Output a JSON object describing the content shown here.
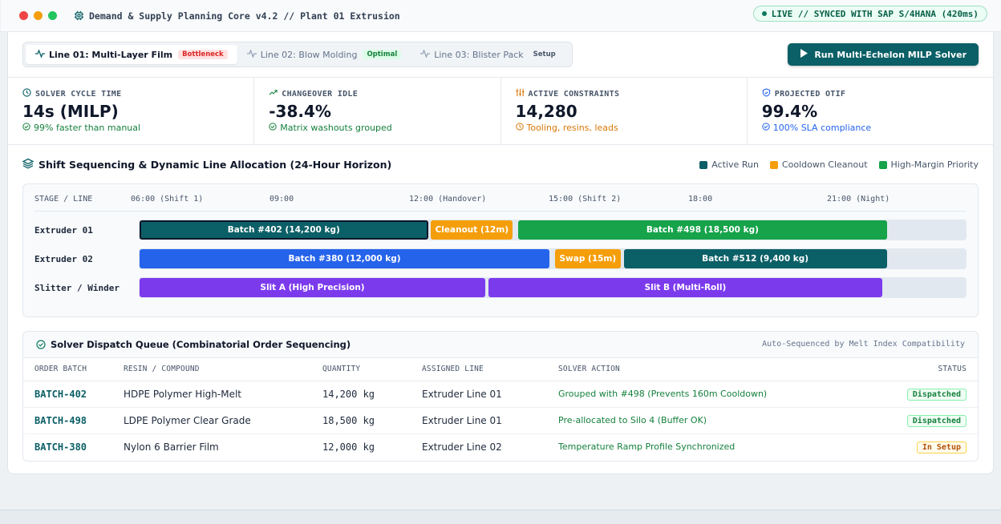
{
  "window": {
    "title": "Demand & Supply Planning Core v4.2 // Plant 01 Extrusion",
    "live_status": "LIVE // SYNCED WITH SAP S/4HANA (420ms)"
  },
  "tabs": [
    {
      "label": "Line 01: Multi-Layer Film",
      "badge": "Bottleneck",
      "badge_fg": "#dc2626",
      "badge_bg": "#fee2e2"
    },
    {
      "label": "Line 02: Blow Molding",
      "badge": "Optimal",
      "badge_fg": "#15803d",
      "badge_bg": "#dcfce7"
    },
    {
      "label": "Line 03: Blister Pack",
      "badge": "Setup",
      "badge_fg": "#475569",
      "badge_bg": "transparent"
    }
  ],
  "run_button": {
    "label": "Run Multi-Echelon MILP Solver"
  },
  "kpis": [
    {
      "label": "SOLVER CYCLE TIME",
      "value": "14s (MILP)",
      "sub": "99% faster than manual",
      "icon": "clock-icon",
      "color": "#15803d"
    },
    {
      "label": "CHANGEOVER IDLE",
      "value": "-38.4%",
      "sub": "Matrix washouts grouped",
      "icon": "trend-up-icon",
      "color": "#15803d"
    },
    {
      "label": "ACTIVE CONSTRAINTS",
      "value": "14,280",
      "sub": "Tooling, resins, leads",
      "icon": "sliders-icon",
      "color": "#d97706"
    },
    {
      "label": "PROJECTED OTIF",
      "value": "99.4%",
      "sub": "100% SLA compliance",
      "icon": "shield-check-icon",
      "color": "#2563eb"
    }
  ],
  "schedule": {
    "title": "Shift Sequencing & Dynamic Line Allocation (24-Hour Horizon)",
    "legend": [
      {
        "label": "Active Run",
        "color": "#0b5f66"
      },
      {
        "label": "Cooldown Cleanout",
        "color": "#f59e0b"
      },
      {
        "label": "High-Margin Priority",
        "color": "#16a34a"
      }
    ],
    "stage_header": "STAGE / LINE",
    "time_labels": [
      "06:00 (Shift 1)",
      "09:00",
      "12:00 (Handover)",
      "15:00 (Shift 2)",
      "18:00",
      "21:00 (Night)"
    ],
    "rows": [
      {
        "line": "Extruder 01",
        "bars": [
          {
            "label": "Batch #402 (14,200 kg)",
            "start_hour": 6.0,
            "end_hour": 12.3,
            "color": "#0b5f66",
            "selected": true
          },
          {
            "label": "Cleanout (12m)",
            "start_hour": 12.35,
            "end_hour": 14.15,
            "color": "#f59e0b"
          },
          {
            "label": "Batch #498 (18,500 kg)",
            "start_hour": 14.25,
            "end_hour": 22.3,
            "color": "#16a34a"
          }
        ]
      },
      {
        "line": "Extruder 02",
        "bars": [
          {
            "label": "Batch #380 (12,000 kg)",
            "start_hour": 6.0,
            "end_hour": 14.95,
            "color": "#2563eb"
          },
          {
            "label": "Swap (15m)",
            "start_hour": 15.05,
            "end_hour": 16.5,
            "color": "#f59e0b"
          },
          {
            "label": "Batch #512 (9,400 kg)",
            "start_hour": 16.55,
            "end_hour": 22.3,
            "color": "#0b5f66"
          }
        ]
      },
      {
        "line": "Slitter / Winder",
        "bars": [
          {
            "label": "Slit A (High Precision)",
            "start_hour": 6.0,
            "end_hour": 13.55,
            "color": "#7c3aed"
          },
          {
            "label": "Slit B (Multi-Roll)",
            "start_hour": 13.6,
            "end_hour": 22.2,
            "color": "#7c3aed"
          }
        ]
      }
    ]
  },
  "queue": {
    "title": "Solver Dispatch Queue (Combinatorial Order Sequencing)",
    "note": "Auto-Sequenced by Melt Index Compatibility",
    "columns": [
      "ORDER BATCH",
      "RESIN / COMPOUND",
      "QUANTITY",
      "ASSIGNED LINE",
      "SOLVER ACTION",
      "STATUS"
    ],
    "rows": [
      {
        "batch": "BATCH-402",
        "resin": "HDPE Polymer High-Melt",
        "qty": "14,200 kg",
        "line": "Extruder Line 01",
        "action": "Grouped with #498 (Prevents 160m Cooldown)",
        "status": "Dispatched",
        "status_fg": "#15803d",
        "status_bg": "#f0fdf4",
        "status_border": "#86efac"
      },
      {
        "batch": "BATCH-498",
        "resin": "LDPE Polymer Clear Grade",
        "qty": "18,500 kg",
        "line": "Extruder Line 01",
        "action": "Pre-allocated to Silo 4 (Buffer OK)",
        "status": "Dispatched",
        "status_fg": "#15803d",
        "status_bg": "#f0fdf4",
        "status_border": "#86efac"
      },
      {
        "batch": "BATCH-380",
        "resin": "Nylon 6 Barrier Film",
        "qty": "12,000 kg",
        "line": "Extruder Line 02",
        "action": "Temperature Ramp Profile Synchronized",
        "status": "In Setup",
        "status_fg": "#b45309",
        "status_bg": "#fffbeb",
        "status_border": "#fcd34d"
      }
    ]
  }
}
